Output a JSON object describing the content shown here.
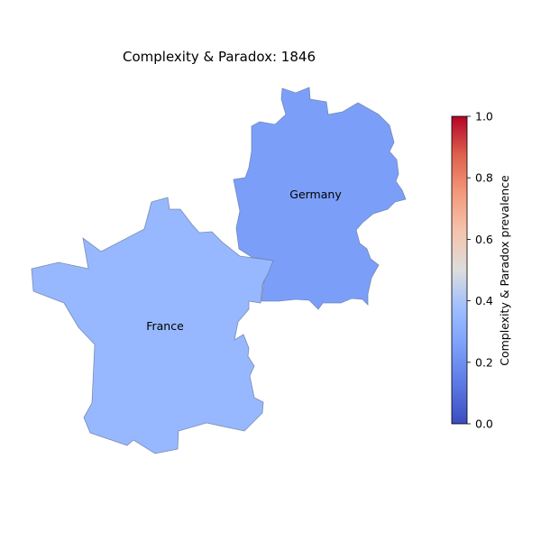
{
  "map": {
    "title": "Complexity & Paradox: 1846",
    "regions": [
      {
        "id": "france",
        "label": "France",
        "value": 0.35
      },
      {
        "id": "germany",
        "label": "Germany",
        "value": 0.25
      }
    ]
  },
  "colorbar": {
    "label": "Complexity & Paradox prevalence",
    "colormap": "coolwarm",
    "range": [
      0.0,
      1.0
    ],
    "ticks": [
      "0.0",
      "0.2",
      "0.4",
      "0.6",
      "0.8",
      "1.0"
    ],
    "colors": {
      "low": "#3b4cc0",
      "mid": "#dddddd",
      "high": "#b40426"
    }
  }
}
